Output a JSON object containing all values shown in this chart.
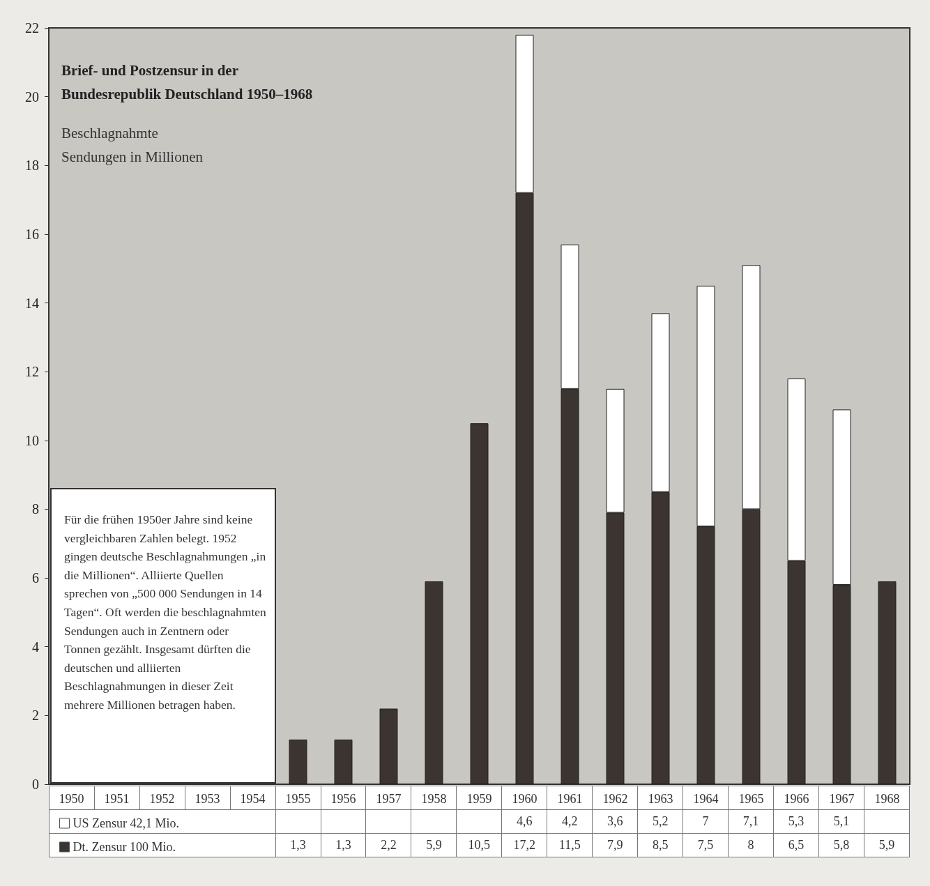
{
  "chart_data": {
    "type": "bar",
    "title": "Brief- und Postzensur in der Bundesrepublik Deutschland 1950–1968",
    "subtitle": "Beschlagnahmte Sendungen in Millionen",
    "annotations": [
      "Für die frühen 1950er Jahre sind keine vergleichbaren Zahlen belegt. 1952 gingen deutsche Beschlagnahmungen „in die Millionen“. Alliierte Quellen sprechen von „500 000 Sendungen in 14 Tagen“. Oft werden die beschlagnahmten Sendungen auch in Zentnern oder Tonnen gezählt. Insgesamt dürften die deutschen und alliierten Beschlagnahmungen in dieser Zeit mehrere Millionen betragen haben."
    ],
    "categories": [
      "1950",
      "1951",
      "1952",
      "1953",
      "1954",
      "1955",
      "1956",
      "1957",
      "1958",
      "1959",
      "1960",
      "1961",
      "1962",
      "1963",
      "1964",
      "1965",
      "1966",
      "1967",
      "1968"
    ],
    "stacked": true,
    "series": [
      {
        "name": "Dt. Zensur 100 Mio.",
        "color": "#3b3430",
        "values": [
          null,
          null,
          null,
          null,
          null,
          1.3,
          1.3,
          2.2,
          5.9,
          10.5,
          17.2,
          11.5,
          7.9,
          8.5,
          7.5,
          8,
          6.5,
          5.8,
          5.9
        ],
        "value_labels": [
          null,
          null,
          null,
          null,
          null,
          "1,3",
          "1,3",
          "2,2",
          "5,9",
          "10,5",
          "17,2",
          "11,5",
          "7,9",
          "8,5",
          "7,5",
          "8",
          "6,5",
          "5,8",
          "5,9"
        ]
      },
      {
        "name": "US Zensur 42,1 Mio.",
        "color": "#ffffff",
        "values": [
          null,
          null,
          null,
          null,
          null,
          null,
          null,
          null,
          null,
          null,
          4.6,
          4.2,
          3.6,
          5.2,
          7,
          7.1,
          5.3,
          5.1,
          null
        ],
        "value_labels": [
          null,
          null,
          null,
          null,
          null,
          null,
          null,
          null,
          null,
          null,
          "4,6",
          "4,2",
          "3,6",
          "5,2",
          "7",
          "7,1",
          "5,3",
          "5,1",
          null
        ]
      }
    ],
    "ylim": [
      0,
      22
    ],
    "yticks": [
      0,
      2,
      4,
      6,
      8,
      10,
      12,
      14,
      16,
      18,
      20,
      22
    ],
    "grid": false,
    "legend": "bottom left"
  }
}
